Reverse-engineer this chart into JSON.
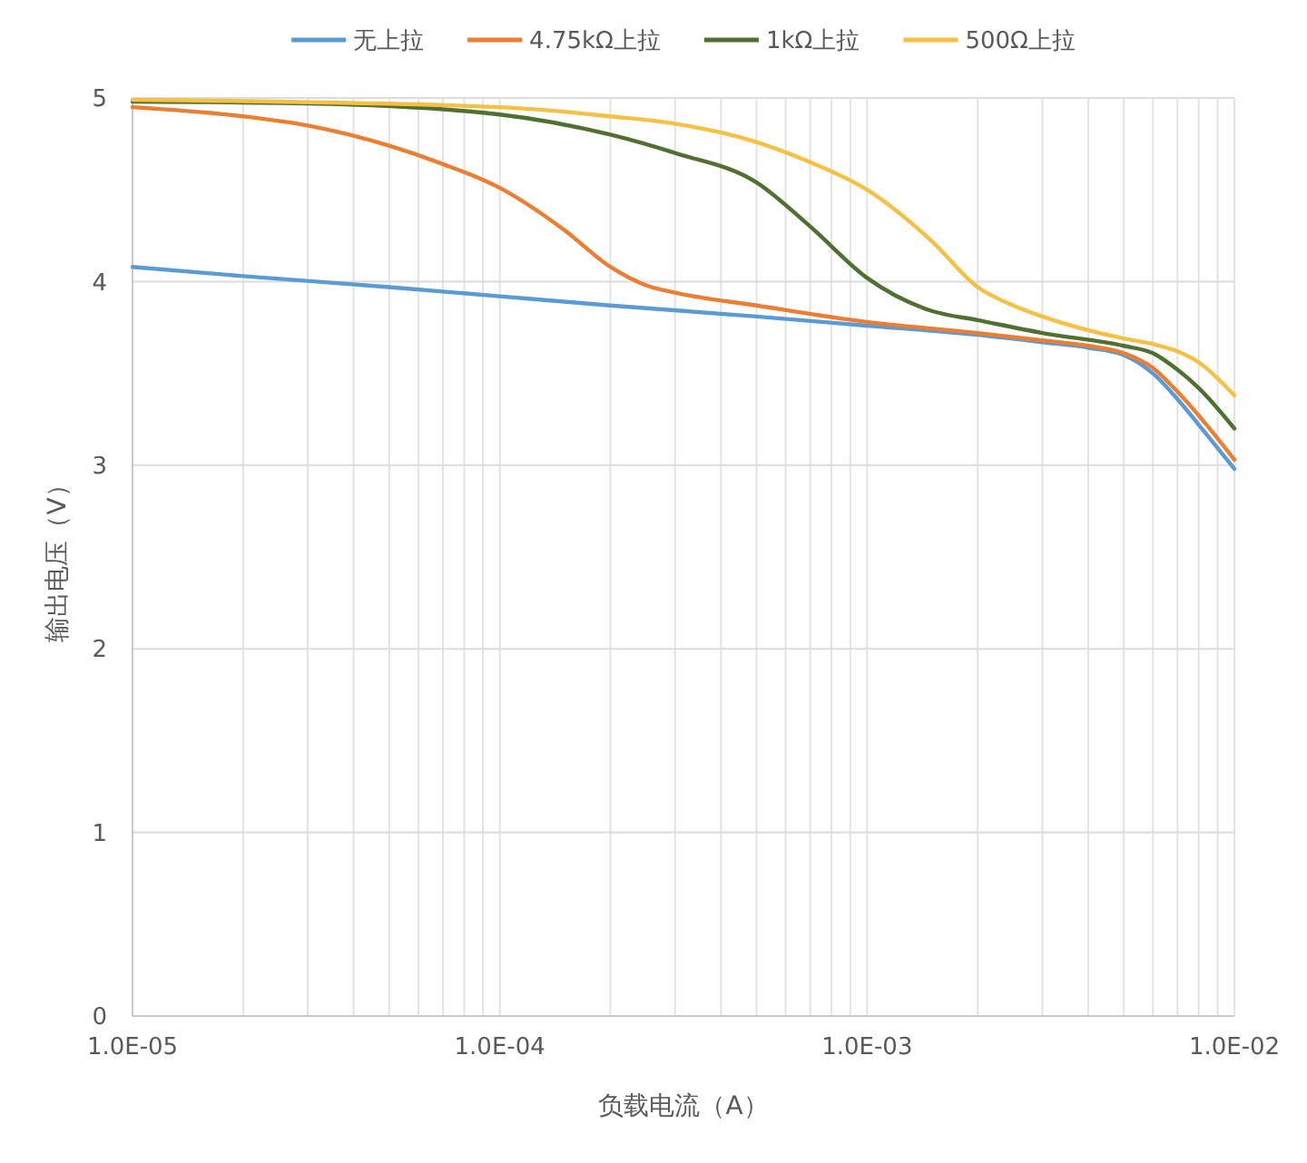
{
  "chart_data": {
    "type": "line",
    "xlabel": "负载电流（A）",
    "ylabel": "输出电压（V）",
    "log": "x",
    "grid": true,
    "legend": "top",
    "xlim": [
      1e-05,
      0.01
    ],
    "ylim": [
      0,
      5
    ],
    "xticks": [
      {
        "value": 1e-05,
        "label": "1.0E-05"
      },
      {
        "value": 2e-05,
        "label": null
      },
      {
        "value": 3e-05,
        "label": null
      },
      {
        "value": 4e-05,
        "label": null
      },
      {
        "value": 5e-05,
        "label": null
      },
      {
        "value": 6e-05,
        "label": null
      },
      {
        "value": 7e-05,
        "label": null
      },
      {
        "value": 8e-05,
        "label": null
      },
      {
        "value": 9e-05,
        "label": null
      },
      {
        "value": 0.0001,
        "label": "1.0E-04"
      },
      {
        "value": 0.0002,
        "label": null
      },
      {
        "value": 0.0003,
        "label": null
      },
      {
        "value": 0.0004,
        "label": null
      },
      {
        "value": 0.0005,
        "label": null
      },
      {
        "value": 0.0006,
        "label": null
      },
      {
        "value": 0.0007,
        "label": null
      },
      {
        "value": 0.0008,
        "label": null
      },
      {
        "value": 0.0009,
        "label": null
      },
      {
        "value": 0.001,
        "label": "1.0E-03"
      },
      {
        "value": 0.002,
        "label": null
      },
      {
        "value": 0.003,
        "label": null
      },
      {
        "value": 0.004,
        "label": null
      },
      {
        "value": 0.005,
        "label": null
      },
      {
        "value": 0.006,
        "label": null
      },
      {
        "value": 0.007,
        "label": null
      },
      {
        "value": 0.008,
        "label": null
      },
      {
        "value": 0.009,
        "label": null
      },
      {
        "value": 0.01,
        "label": "1.0E-02"
      }
    ],
    "yticks": [
      0,
      1,
      2,
      3,
      4,
      5
    ],
    "series": [
      {
        "name": "无上拉",
        "color": "#5b9bd5",
        "x": [
          1e-05,
          2e-05,
          5e-05,
          0.0001,
          0.0002,
          0.0005,
          0.001,
          0.002,
          0.003,
          0.004,
          0.005,
          0.006,
          0.007,
          0.008,
          0.01
        ],
        "values": [
          4.08,
          4.03,
          3.97,
          3.92,
          3.87,
          3.81,
          3.76,
          3.71,
          3.67,
          3.64,
          3.6,
          3.5,
          3.36,
          3.22,
          2.98
        ]
      },
      {
        "name": "4.75kΩ上拉",
        "color": "#ed7d31",
        "x": [
          1e-05,
          2e-05,
          3e-05,
          5e-05,
          7e-05,
          0.0001,
          0.00015,
          0.0002,
          0.00025,
          0.0003,
          0.0005,
          0.001,
          0.002,
          0.003,
          0.004,
          0.005,
          0.006,
          0.007,
          0.008,
          0.01
        ],
        "values": [
          4.95,
          4.9,
          4.85,
          4.74,
          4.64,
          4.51,
          4.28,
          4.08,
          3.98,
          3.94,
          3.87,
          3.78,
          3.72,
          3.68,
          3.65,
          3.61,
          3.53,
          3.4,
          3.27,
          3.03
        ]
      },
      {
        "name": "1kΩ上拉",
        "color": "#4f7030",
        "x": [
          1e-05,
          3e-05,
          0.0001,
          0.0002,
          0.0003,
          0.0005,
          0.0007,
          0.001,
          0.0015,
          0.002,
          0.003,
          0.005,
          0.006,
          0.007,
          0.008,
          0.01
        ],
        "values": [
          4.98,
          4.97,
          4.91,
          4.8,
          4.7,
          4.54,
          4.3,
          4.02,
          3.84,
          3.79,
          3.72,
          3.65,
          3.61,
          3.52,
          3.42,
          3.2
        ]
      },
      {
        "name": "500Ω上拉",
        "color": "#f5c043",
        "x": [
          1e-05,
          0.0001,
          0.0002,
          0.0003,
          0.0005,
          0.0007,
          0.001,
          0.0015,
          0.002,
          0.0025,
          0.003,
          0.005,
          0.006,
          0.007,
          0.008,
          0.01
        ],
        "values": [
          4.99,
          4.95,
          4.9,
          4.86,
          4.76,
          4.65,
          4.5,
          4.22,
          3.97,
          3.87,
          3.81,
          3.69,
          3.66,
          3.62,
          3.56,
          3.38
        ]
      }
    ]
  }
}
